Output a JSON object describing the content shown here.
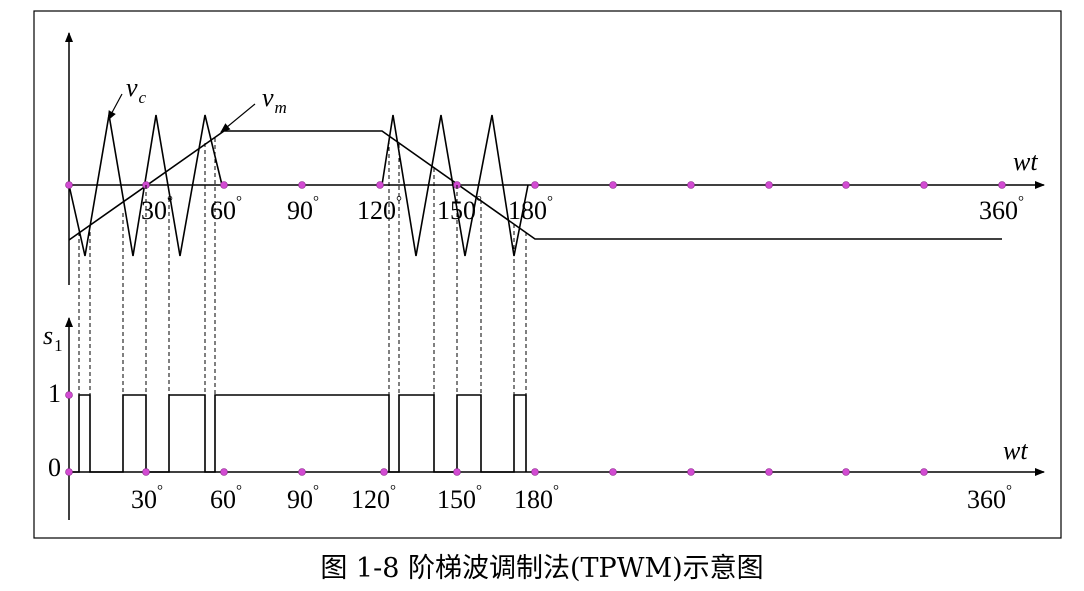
{
  "caption": "图 1-8 阶梯波调制法(TPWM)示意图",
  "top_panel": {
    "axis_label": "wt",
    "carrier_label": "v",
    "carrier_sub": "c",
    "modulating_label": "v",
    "modulating_sub": "m",
    "ticks": [
      "30",
      "60",
      "90",
      "120",
      "150",
      "180",
      "360"
    ],
    "degree": "°"
  },
  "bottom_panel": {
    "axis_label": "wt",
    "signal_label": "s",
    "signal_sub": "1",
    "level_high": "1",
    "level_low": "0",
    "ticks": [
      "30",
      "60",
      "90",
      "120",
      "150",
      "180",
      "360"
    ],
    "degree": "°"
  },
  "colors": {
    "marker": "#d24bd2",
    "line": "#000000"
  }
}
